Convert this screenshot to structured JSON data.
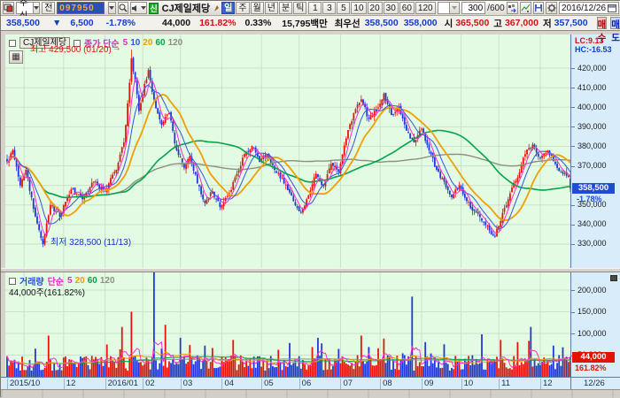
{
  "toolbar": {
    "asset_type": "주식",
    "jeon_label": "전",
    "code": "097950",
    "new_badge": "신",
    "stock_name": "CJ제일제당",
    "periods": [
      {
        "label": "일",
        "active": true
      },
      {
        "label": "주",
        "active": false
      },
      {
        "label": "월",
        "active": false
      },
      {
        "label": "년",
        "active": false
      },
      {
        "label": "분",
        "active": false
      },
      {
        "label": "틱",
        "active": false
      }
    ],
    "intervals": [
      "1",
      "3",
      "5",
      "10",
      "20",
      "30",
      "60",
      "120"
    ],
    "count": "300",
    "count_max": "/600",
    "date": "2016/12/26"
  },
  "quote": {
    "items": [
      {
        "name": "last-price",
        "text": "358,500",
        "color": "#1040cc",
        "icon": "down-triangle",
        "gap": 14
      },
      {
        "name": "change",
        "text": "6,500",
        "color": "#1040cc",
        "gap": 14
      },
      {
        "name": "change-pct",
        "text": "-1.78%",
        "color": "#1040cc",
        "gap": 30
      },
      {
        "name": "volume",
        "text": "44,000",
        "color": "#111111",
        "gap": 10
      },
      {
        "name": "volume-ratio",
        "text": "161.82%",
        "color": "#d80f0f",
        "gap": 10
      },
      {
        "name": "turnover-rate",
        "text": "0.33%",
        "color": "#111111",
        "gap": 12
      },
      {
        "name": "trade-value",
        "text": "15,795백만",
        "color": "#111111",
        "gap": 8
      },
      {
        "name": "best-quote-label",
        "text": "최우선",
        "color": "#111111",
        "gap": 5
      },
      {
        "name": "best-bid",
        "text": "358,500",
        "color": "#1040cc",
        "gap": 6
      },
      {
        "name": "best-ask",
        "text": "358,000",
        "color": "#1040cc",
        "gap": 8
      },
      {
        "name": "open-label",
        "text": "시",
        "color": "#111111",
        "gap": 3
      },
      {
        "name": "open",
        "text": "365,500",
        "color": "#d80f0f",
        "gap": 5
      },
      {
        "name": "high-label",
        "text": "고",
        "color": "#111111",
        "gap": 3
      },
      {
        "name": "high",
        "text": "367,000",
        "color": "#d80f0f",
        "gap": 5
      },
      {
        "name": "low-label",
        "text": "저",
        "color": "#111111",
        "gap": 3
      },
      {
        "name": "low",
        "text": "357,500",
        "color": "#1040cc",
        "gap": 0
      }
    ],
    "buy_label": "매수",
    "sell_label": "매도"
  },
  "price_pane": {
    "legend": {
      "symbol": "CJ제일제당",
      "type_label": "종가 단순",
      "mas": [
        {
          "t": "5",
          "c": "#e427c0"
        },
        {
          "t": "10",
          "c": "#3355e0"
        },
        {
          "t": "20",
          "c": "#e8a000"
        },
        {
          "t": "60",
          "c": "#00a44a"
        },
        {
          "t": "120",
          "c": "#8f8f80"
        }
      ]
    },
    "annotations": {
      "high": {
        "text": "최고 429,500 (01/20)",
        "arrow": "→"
      },
      "low": {
        "text": "최저 328,500 (11/13)",
        "arrow": "←"
      }
    },
    "axis": {
      "lc": "LC:9.13",
      "hc": "HC:-16.53",
      "ticks": [
        {
          "t": "420,000",
          "v": 420000
        },
        {
          "t": "410,000",
          "v": 410000
        },
        {
          "t": "400,000",
          "v": 400000
        },
        {
          "t": "390,000",
          "v": 390000
        },
        {
          "t": "380,000",
          "v": 380000
        },
        {
          "t": "370,000",
          "v": 370000
        },
        {
          "t": "350,000",
          "v": 350000
        },
        {
          "t": "340,000",
          "v": 340000
        },
        {
          "t": "330,000",
          "v": 330000
        }
      ],
      "marker": "358,500",
      "marker_pct": "-1.78%"
    }
  },
  "volume_pane": {
    "legend": {
      "title": "거래량",
      "type_label": "단순",
      "mas": [
        {
          "t": "5",
          "c": "#e427c0"
        },
        {
          "t": "20",
          "c": "#e8a000"
        },
        {
          "t": "60",
          "c": "#00a44a"
        },
        {
          "t": "120",
          "c": "#8f8f80"
        }
      ],
      "line2": "44,000주(161.82%)"
    },
    "axis": {
      "ticks": [
        {
          "t": "200,000",
          "v": 200000
        },
        {
          "t": "150,000",
          "v": 150000
        },
        {
          "t": "100,000",
          "v": 100000
        },
        {
          "t": "50,000",
          "v": 50000
        }
      ],
      "marker": "44,000",
      "marker_pct": "161.82%"
    }
  },
  "xaxis": {
    "labels": [
      {
        "t": "2015/10",
        "i": 0
      },
      {
        "t": "12",
        "i": 30
      },
      {
        "t": "2016/01",
        "i": 52
      },
      {
        "t": "02",
        "i": 72
      },
      {
        "t": "03",
        "i": 92
      },
      {
        "t": "04",
        "i": 114
      },
      {
        "t": "05",
        "i": 135
      },
      {
        "t": "06",
        "i": 155
      },
      {
        "t": "07",
        "i": 177
      },
      {
        "t": "08",
        "i": 198
      },
      {
        "t": "09",
        "i": 220
      },
      {
        "t": "10",
        "i": 241
      },
      {
        "t": "11",
        "i": 261
      },
      {
        "t": "12",
        "i": 283
      }
    ],
    "corner": "12/26"
  },
  "chart_data": {
    "type": "candlestick+volume",
    "symbol": "CJ제일제당",
    "n": 300,
    "seed": 20161226,
    "x_range": [
      "2015/10",
      "2016/12/26"
    ],
    "y_range": [
      328500,
      429500
    ],
    "price_gridlines": [
      420000,
      410000,
      400000,
      390000,
      380000,
      370000,
      360000,
      350000,
      340000,
      330000
    ],
    "volume_gridlines": [
      50000,
      100000,
      150000,
      200000
    ],
    "month_boundaries": [
      9,
      30,
      52,
      72,
      92,
      114,
      135,
      155,
      177,
      198,
      220,
      241,
      261,
      283
    ],
    "price_anchors": [
      [
        0,
        372000
      ],
      [
        3,
        378000
      ],
      [
        7,
        360000
      ],
      [
        10,
        368000
      ],
      [
        14,
        348000
      ],
      [
        19,
        330000
      ],
      [
        23,
        350000
      ],
      [
        28,
        344000
      ],
      [
        34,
        358000
      ],
      [
        40,
        353000
      ],
      [
        46,
        362000
      ],
      [
        52,
        357000
      ],
      [
        58,
        368000
      ],
      [
        62,
        382000
      ],
      [
        64,
        402000
      ],
      [
        66,
        425000
      ],
      [
        68,
        413000
      ],
      [
        70,
        398000
      ],
      [
        73,
        412000
      ],
      [
        75,
        419000
      ],
      [
        78,
        404000
      ],
      [
        82,
        391000
      ],
      [
        86,
        397000
      ],
      [
        90,
        378000
      ],
      [
        94,
        369000
      ],
      [
        97,
        375000
      ],
      [
        101,
        361000
      ],
      [
        105,
        351000
      ],
      [
        109,
        357000
      ],
      [
        113,
        349000
      ],
      [
        118,
        356000
      ],
      [
        122,
        366000
      ],
      [
        126,
        376000
      ],
      [
        130,
        380000
      ],
      [
        134,
        372000
      ],
      [
        138,
        376000
      ],
      [
        142,
        368000
      ],
      [
        147,
        361000
      ],
      [
        152,
        352000
      ],
      [
        156,
        346000
      ],
      [
        160,
        355000
      ],
      [
        164,
        366000
      ],
      [
        168,
        360000
      ],
      [
        172,
        371000
      ],
      [
        176,
        367000
      ],
      [
        180,
        384000
      ],
      [
        184,
        397000
      ],
      [
        188,
        404000
      ],
      [
        192,
        394000
      ],
      [
        196,
        399000
      ],
      [
        200,
        407000
      ],
      [
        204,
        396000
      ],
      [
        208,
        400000
      ],
      [
        212,
        388000
      ],
      [
        216,
        382000
      ],
      [
        220,
        389000
      ],
      [
        224,
        378000
      ],
      [
        228,
        368000
      ],
      [
        232,
        362000
      ],
      [
        236,
        354000
      ],
      [
        240,
        360000
      ],
      [
        244,
        352000
      ],
      [
        248,
        347000
      ],
      [
        252,
        342000
      ],
      [
        256,
        337000
      ],
      [
        259,
        334000
      ],
      [
        263,
        346000
      ],
      [
        267,
        356000
      ],
      [
        271,
        364000
      ],
      [
        275,
        376000
      ],
      [
        279,
        381000
      ],
      [
        283,
        374000
      ],
      [
        287,
        378000
      ],
      [
        291,
        371000
      ],
      [
        295,
        366000
      ],
      [
        298,
        365000
      ],
      [
        299,
        358500
      ]
    ],
    "volume_spikes": {
      "22": 95000,
      "61": 115000,
      "66": 150000,
      "78": 250000,
      "84": 120000,
      "92": 90000,
      "120": 85000,
      "150": 78000,
      "165": 90000,
      "188": 95000,
      "200": 88000,
      "215": 185000,
      "222": 80000,
      "232": 75000,
      "252": 98000,
      "262": 85000,
      "271": 80000,
      "278": 115000,
      "290": 72000,
      "295": 68000,
      "299": 44000
    },
    "high_point": {
      "i": 66,
      "price": 429500,
      "date": "01/20"
    },
    "low_point": {
      "i": 19,
      "price": 328500,
      "date": "11/13"
    },
    "last": {
      "close": 358500,
      "change": -6500,
      "change_pct": -1.78,
      "volume": 44000,
      "volume_ratio_pct": 161.82
    },
    "ma_periods_price": [
      5,
      10,
      20,
      60,
      120
    ],
    "ma_periods_volume": [
      5,
      20,
      60,
      120
    ],
    "colors": {
      "up": "#e8140c",
      "down": "#2238d8",
      "ma5": "#ff2ad4",
      "ma10": "#3355e0",
      "ma20": "#f0a000",
      "ma60": "#00a44a",
      "ma120": "#8f8f80",
      "grid": "#c9e2c9",
      "pane_bg": "#e3fbe3",
      "axis_bg": "#d8ecf9"
    }
  }
}
